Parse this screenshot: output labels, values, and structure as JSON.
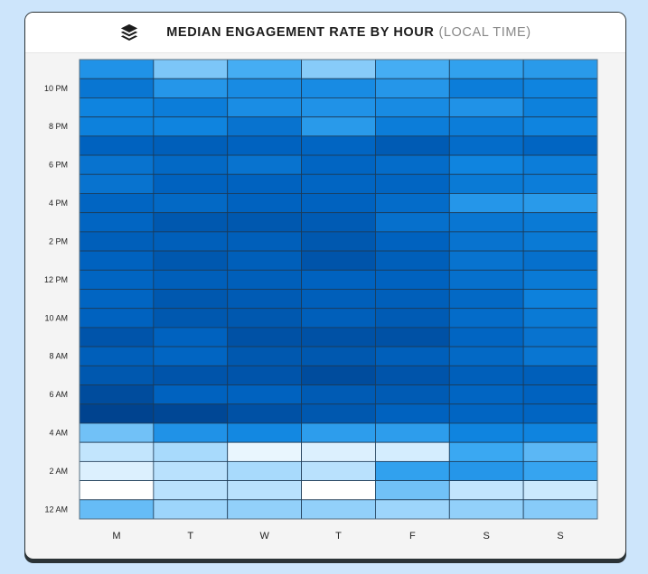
{
  "header": {
    "title": "MEDIAN ENGAGEMENT RATE BY HOUR",
    "subtitle": "(LOCAL TIME)",
    "logo_icon": "stacked-layers-icon"
  },
  "chart_data": {
    "type": "heatmap",
    "title": "MEDIAN ENGAGEMENT RATE BY HOUR (LOCAL TIME)",
    "value_note": "relative intensity 0-1 (no numeric scale shown)",
    "x_categories": [
      "M",
      "T",
      "W",
      "T",
      "F",
      "S",
      "S"
    ],
    "y_categories": [
      "11 PM",
      "10 PM",
      "9 PM",
      "8 PM",
      "7 PM",
      "6 PM",
      "5 PM",
      "4 PM",
      "3 PM",
      "2 PM",
      "1 PM",
      "12 PM",
      "11 AM",
      "10 AM",
      "9 AM",
      "8 AM",
      "7 AM",
      "6 AM",
      "5 AM",
      "4 AM",
      "3 AM",
      "2 AM",
      "1 AM",
      "12 AM"
    ],
    "y_tick_labels": [
      "10 PM",
      "8 PM",
      "6 PM",
      "4 PM",
      "2 PM",
      "12 PM",
      "10 AM",
      "8 AM",
      "6 AM",
      "4 AM",
      "2 AM",
      "12 AM"
    ],
    "values": [
      [
        0.52,
        0.28,
        0.38,
        0.26,
        0.38,
        0.44,
        0.48
      ],
      [
        0.68,
        0.5,
        0.56,
        0.56,
        0.5,
        0.64,
        0.6
      ],
      [
        0.6,
        0.64,
        0.55,
        0.52,
        0.56,
        0.52,
        0.62
      ],
      [
        0.62,
        0.6,
        0.7,
        0.48,
        0.64,
        0.64,
        0.6
      ],
      [
        0.8,
        0.82,
        0.8,
        0.78,
        0.84,
        0.74,
        0.78
      ],
      [
        0.7,
        0.76,
        0.7,
        0.78,
        0.74,
        0.6,
        0.64
      ],
      [
        0.7,
        0.8,
        0.8,
        0.78,
        0.78,
        0.66,
        0.64
      ],
      [
        0.78,
        0.76,
        0.8,
        0.8,
        0.74,
        0.5,
        0.48
      ],
      [
        0.78,
        0.86,
        0.86,
        0.84,
        0.72,
        0.68,
        0.66
      ],
      [
        0.82,
        0.82,
        0.82,
        0.86,
        0.8,
        0.7,
        0.66
      ],
      [
        0.8,
        0.86,
        0.82,
        0.88,
        0.82,
        0.7,
        0.72
      ],
      [
        0.78,
        0.82,
        0.82,
        0.8,
        0.8,
        0.72,
        0.66
      ],
      [
        0.78,
        0.86,
        0.84,
        0.82,
        0.82,
        0.76,
        0.62
      ],
      [
        0.8,
        0.86,
        0.86,
        0.82,
        0.84,
        0.74,
        0.66
      ],
      [
        0.88,
        0.8,
        0.9,
        0.9,
        0.9,
        0.78,
        0.7
      ],
      [
        0.82,
        0.78,
        0.86,
        0.86,
        0.82,
        0.76,
        0.68
      ],
      [
        0.86,
        0.88,
        0.88,
        0.93,
        0.88,
        0.82,
        0.82
      ],
      [
        0.93,
        0.8,
        0.8,
        0.84,
        0.84,
        0.78,
        0.8
      ],
      [
        0.98,
        0.96,
        0.9,
        0.86,
        0.8,
        0.78,
        0.78
      ],
      [
        0.3,
        0.52,
        0.58,
        0.46,
        0.46,
        0.6,
        0.6
      ],
      [
        0.14,
        0.2,
        0.05,
        0.08,
        0.1,
        0.4,
        0.34
      ],
      [
        0.08,
        0.16,
        0.2,
        0.16,
        0.44,
        0.5,
        0.42
      ],
      [
        0.0,
        0.16,
        0.16,
        0.0,
        0.3,
        0.14,
        0.12
      ],
      [
        0.32,
        0.22,
        0.24,
        0.24,
        0.22,
        0.24,
        0.26
      ]
    ],
    "color_scale": [
      "#ffffff",
      "#a8dafc",
      "#3aa8f2",
      "#0f84df",
      "#0062bf",
      "#00408a"
    ],
    "grid": false,
    "legend": "none"
  }
}
